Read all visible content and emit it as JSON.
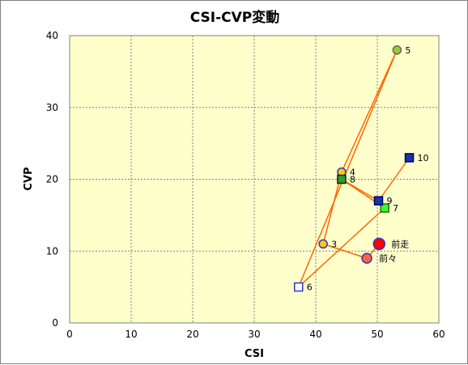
{
  "chart_data": {
    "type": "scatter",
    "title": "CSI-CVP変動",
    "xlabel": "CSI",
    "ylabel": "CVP",
    "xlim": [
      0,
      60
    ],
    "ylim": [
      0,
      40
    ],
    "xticks": [
      "0",
      "10",
      "20",
      "30",
      "40",
      "50",
      "60"
    ],
    "yticks": [
      "0",
      "10",
      "20",
      "30",
      "40"
    ],
    "grid": true,
    "background_color": "#FFFFCC",
    "line_color": "#FF6600",
    "points": [
      {
        "label": "前走",
        "x": 50.3,
        "y": 11,
        "shape": "circle",
        "fill": "#FF0000",
        "stroke": "#3333CC"
      },
      {
        "label": "前々",
        "x": 48.3,
        "y": 9,
        "shape": "circle",
        "fill": "#FF6633",
        "stroke": "#3333CC"
      },
      {
        "label": "3",
        "x": 41.2,
        "y": 11,
        "shape": "circle",
        "fill": "#FFCC00",
        "stroke": "#3333CC"
      },
      {
        "label": "4",
        "x": 44.2,
        "y": 21,
        "shape": "circle",
        "fill": "#FFCC00",
        "stroke": "#3333CC"
      },
      {
        "label": "5",
        "x": 53.2,
        "y": 38,
        "shape": "circle",
        "fill": "#99CC33",
        "stroke": "#666666"
      },
      {
        "label": "6",
        "x": 37.2,
        "y": 5,
        "shape": "square",
        "fill": "#FFFFFF",
        "stroke": "#3333CC"
      },
      {
        "label": "7",
        "x": 51.2,
        "y": 16,
        "shape": "square",
        "fill": "#33FF33",
        "stroke": "#336600"
      },
      {
        "label": "8",
        "x": 44.2,
        "y": 20,
        "shape": "square",
        "fill": "#339933",
        "stroke": "#003300"
      },
      {
        "label": "9",
        "x": 50.2,
        "y": 17,
        "shape": "square",
        "fill": "#1A33AA",
        "stroke": "#000066"
      },
      {
        "label": "10",
        "x": 55.2,
        "y": 23,
        "shape": "square",
        "fill": "#1A33AA",
        "stroke": "#000066"
      }
    ],
    "path_order": [
      "前走",
      "前々",
      "3",
      "4",
      "5",
      "6",
      "7",
      "8",
      "9",
      "10"
    ]
  }
}
